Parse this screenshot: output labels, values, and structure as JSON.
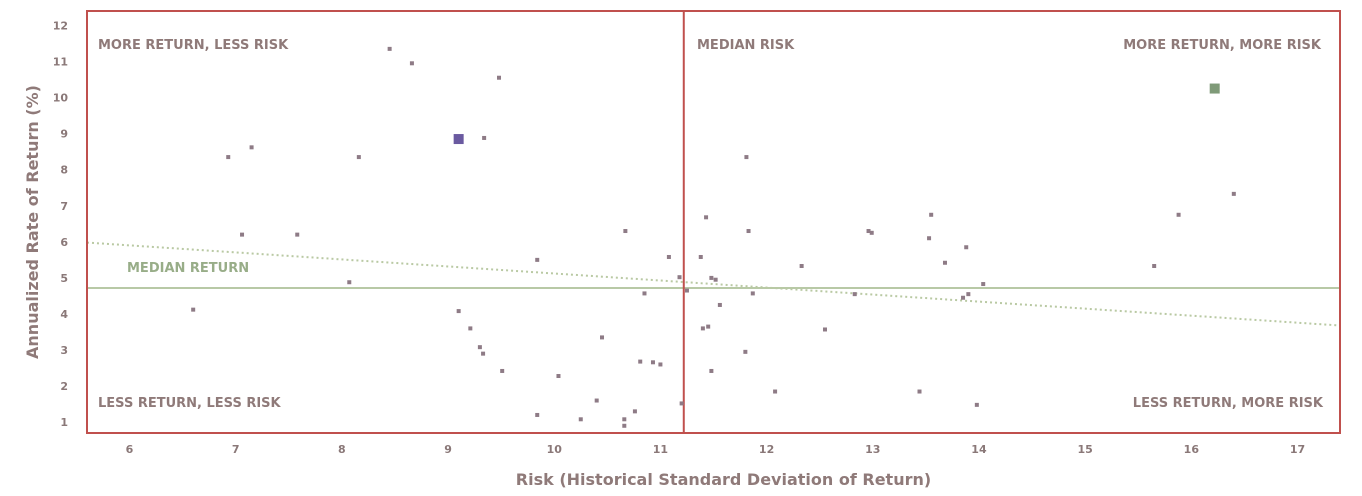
{
  "chart_data": {
    "type": "scatter",
    "xlabel": "Risk (Historical Standard Deviation of Return)",
    "ylabel": "Annualized Rate of Return (%)",
    "xlim": [
      5.6,
      17.4
    ],
    "ylim": [
      0.7,
      12.4
    ],
    "x_ticks": [
      "6",
      "7",
      "8",
      "9",
      "10",
      "11",
      "12",
      "13",
      "14",
      "15",
      "16",
      "17"
    ],
    "y_ticks": [
      "1",
      "2",
      "3",
      "4",
      "5",
      "6",
      "7",
      "8",
      "9",
      "10",
      "11",
      "12"
    ],
    "median_risk": 11.22,
    "median_return": 4.72,
    "trendline": {
      "x": [
        5.6,
        17.4
      ],
      "y": [
        5.98,
        3.68
      ]
    },
    "quadrant_labels": {
      "top_left": "MORE RETURN, LESS RISK",
      "top_middle": "MEDIAN RISK",
      "top_right": "MORE RETURN, MORE RISK",
      "bottom_left": "LESS RETURN, LESS RISK",
      "bottom_right": "LESS RETURN, MORE RISK",
      "median_return": "MEDIAN RETURN"
    },
    "colors": {
      "frame": "#c0504d",
      "median_line": "#b8c9a6",
      "trendline": "#b9c9a3",
      "point": "#8e7b86",
      "highlight_purple": "#6a5aa0",
      "highlight_green": "#7f9a78"
    },
    "highlight_points": [
      {
        "x": 9.1,
        "y": 8.85,
        "color": "#6a5aa0"
      },
      {
        "x": 16.22,
        "y": 10.25,
        "color": "#7f9a78"
      }
    ],
    "points": [
      [
        8.45,
        11.35
      ],
      [
        8.66,
        10.95
      ],
      [
        9.48,
        10.55
      ],
      [
        6.93,
        8.35
      ],
      [
        7.15,
        8.62
      ],
      [
        8.16,
        8.35
      ],
      [
        9.34,
        8.88
      ],
      [
        7.06,
        6.2
      ],
      [
        7.58,
        6.2
      ],
      [
        6.6,
        4.12
      ],
      [
        8.07,
        4.88
      ],
      [
        9.84,
        5.5
      ],
      [
        10.67,
        6.3
      ],
      [
        11.08,
        5.58
      ],
      [
        11.18,
        5.02
      ],
      [
        9.1,
        4.08
      ],
      [
        9.21,
        3.6
      ],
      [
        9.3,
        3.08
      ],
      [
        9.33,
        2.9
      ],
      [
        9.51,
        2.42
      ],
      [
        10.45,
        3.35
      ],
      [
        10.04,
        2.28
      ],
      [
        10.81,
        2.68
      ],
      [
        10.93,
        2.66
      ],
      [
        11.0,
        2.6
      ],
      [
        10.85,
        4.57
      ],
      [
        10.4,
        1.6
      ],
      [
        9.84,
        1.2
      ],
      [
        10.25,
        1.08
      ],
      [
        10.66,
        1.08
      ],
      [
        10.66,
        0.9
      ],
      [
        10.76,
        1.3
      ],
      [
        11.2,
        1.52
      ],
      [
        11.25,
        4.65
      ],
      [
        11.43,
        6.68
      ],
      [
        11.38,
        5.58
      ],
      [
        11.4,
        3.6
      ],
      [
        11.45,
        3.65
      ],
      [
        11.48,
        5.0
      ],
      [
        11.52,
        4.95
      ],
      [
        11.56,
        4.25
      ],
      [
        11.48,
        2.42
      ],
      [
        11.81,
        8.35
      ],
      [
        11.83,
        6.3
      ],
      [
        11.87,
        4.57
      ],
      [
        11.8,
        2.95
      ],
      [
        12.08,
        1.85
      ],
      [
        12.33,
        5.33
      ],
      [
        12.55,
        3.57
      ],
      [
        12.83,
        4.55
      ],
      [
        12.96,
        6.3
      ],
      [
        12.99,
        6.25
      ],
      [
        13.44,
        1.85
      ],
      [
        13.55,
        6.75
      ],
      [
        13.53,
        6.1
      ],
      [
        13.68,
        5.42
      ],
      [
        13.88,
        5.85
      ],
      [
        13.85,
        4.45
      ],
      [
        13.9,
        4.55
      ],
      [
        13.98,
        1.48
      ],
      [
        14.04,
        4.83
      ],
      [
        15.65,
        5.33
      ],
      [
        15.88,
        6.75
      ],
      [
        16.4,
        7.33
      ]
    ]
  }
}
